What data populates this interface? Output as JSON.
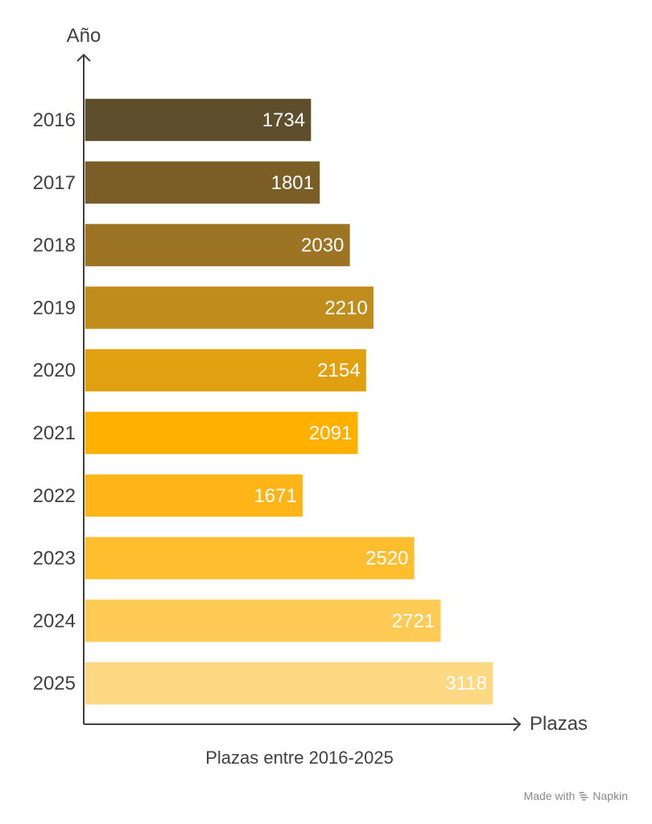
{
  "chart_data": {
    "type": "bar",
    "orientation": "horizontal",
    "title": "Plazas entre 2016-2025",
    "xlabel": "Plazas",
    "ylabel": "Año",
    "categories": [
      "2016",
      "2017",
      "2018",
      "2019",
      "2020",
      "2021",
      "2022",
      "2023",
      "2024",
      "2025"
    ],
    "values": [
      1734,
      1801,
      2030,
      2210,
      2154,
      2091,
      1671,
      2520,
      2721,
      3118
    ],
    "value_labels": [
      "1734",
      "1801",
      "2030",
      "2210",
      "2154",
      "2091",
      "1671",
      "2520",
      "2721",
      "3118"
    ],
    "bar_colors": [
      "#5E4E2B",
      "#7A5E26",
      "#9C7424",
      "#C08C1B",
      "#E1A00F",
      "#FFB000",
      "#FFB517",
      "#FFBE2E",
      "#FFCB55",
      "#FFD884"
    ],
    "xlim": [
      0,
      3118
    ],
    "grid": false,
    "legend": "none"
  },
  "credit": {
    "made_with": "Made with",
    "brand": "Napkin"
  }
}
